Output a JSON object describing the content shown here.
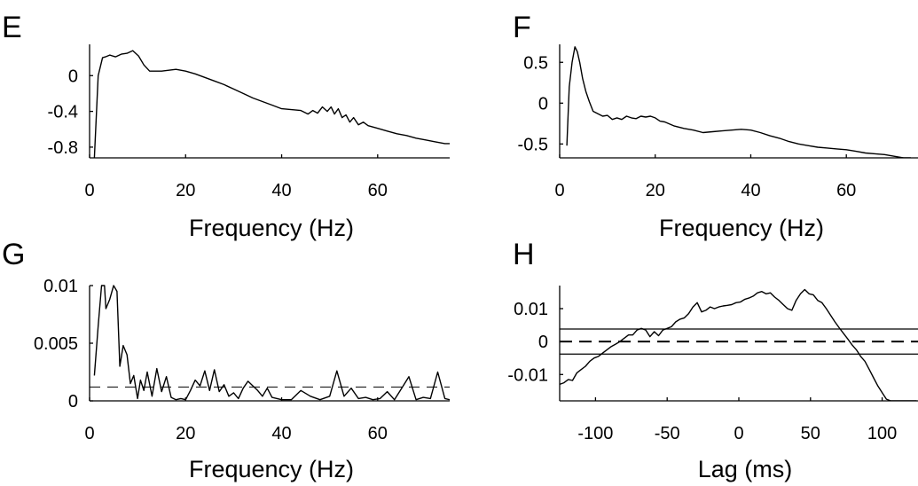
{
  "chart_data": [
    {
      "panel": "E",
      "type": "line",
      "xlabel": "Frequency (Hz)",
      "ylabel": "",
      "xlim": [
        0,
        75
      ],
      "ylim": [
        -0.92,
        0.35
      ],
      "xticks": [
        "0",
        "20",
        "40",
        "60"
      ],
      "yticks": [
        "0",
        "-0.4",
        "-0.8"
      ],
      "series": [
        {
          "x": [
            1,
            1.8,
            2.7,
            3.3,
            4.2,
            5.4,
            6.6,
            7.8,
            9.0,
            10.2,
            11.3,
            12.5,
            13.7,
            15.0,
            16.5,
            18.0,
            20.0,
            22.0,
            24.0,
            26.0,
            28.0,
            30.0,
            32.0,
            34.0,
            36.0,
            38.0,
            40.0,
            42.0,
            44.0,
            45.5,
            46.5,
            47.5,
            48.5,
            49.5,
            50.3,
            51.0,
            51.8,
            52.6,
            53.4,
            54.2,
            55.0,
            56.0,
            57.0,
            58.0,
            60.0,
            62.0,
            64.0,
            66.0,
            68.0,
            70.0,
            72.0,
            74.0,
            75.0
          ],
          "y": [
            -0.92,
            0.0,
            0.2,
            0.21,
            0.23,
            0.21,
            0.24,
            0.25,
            0.28,
            0.22,
            0.12,
            0.05,
            0.05,
            0.05,
            0.06,
            0.07,
            0.05,
            0.02,
            -0.02,
            -0.06,
            -0.1,
            -0.15,
            -0.2,
            -0.25,
            -0.29,
            -0.33,
            -0.37,
            -0.38,
            -0.39,
            -0.43,
            -0.39,
            -0.42,
            -0.35,
            -0.4,
            -0.35,
            -0.43,
            -0.37,
            -0.47,
            -0.44,
            -0.52,
            -0.47,
            -0.55,
            -0.52,
            -0.56,
            -0.59,
            -0.62,
            -0.65,
            -0.67,
            -0.7,
            -0.72,
            -0.74,
            -0.76,
            -0.76
          ]
        }
      ]
    },
    {
      "panel": "F",
      "type": "line",
      "xlabel": "Frequency (Hz)",
      "ylabel": "",
      "xlim": [
        0,
        75
      ],
      "ylim": [
        -0.67,
        0.72
      ],
      "xticks": [
        "0",
        "20",
        "40",
        "60"
      ],
      "yticks": [
        "0.5",
        "0",
        "-0.5"
      ],
      "series": [
        {
          "x": [
            1.5,
            2.0,
            2.6,
            3.2,
            3.7,
            4.2,
            4.8,
            5.5,
            6.2,
            7.0,
            8.0,
            9.0,
            10.0,
            11.0,
            12.0,
            13.0,
            14.0,
            15.0,
            16.0,
            17.0,
            18.0,
            19.0,
            20.0,
            21.0,
            22.0,
            24.0,
            26.0,
            28.0,
            30.0,
            32.0,
            34.0,
            36.0,
            38.0,
            40.0,
            42.0,
            44.0,
            46.0,
            48.0,
            50.0,
            52.0,
            54.0,
            56.0,
            58.0,
            60.0,
            62.0,
            64.0,
            66.0,
            68.0,
            70.0,
            72.0,
            73.5
          ],
          "y": [
            -0.52,
            0.2,
            0.5,
            0.69,
            0.63,
            0.5,
            0.3,
            0.14,
            0.02,
            -0.1,
            -0.13,
            -0.16,
            -0.15,
            -0.2,
            -0.18,
            -0.2,
            -0.16,
            -0.18,
            -0.19,
            -0.16,
            -0.17,
            -0.16,
            -0.18,
            -0.22,
            -0.23,
            -0.28,
            -0.31,
            -0.33,
            -0.36,
            -0.35,
            -0.34,
            -0.33,
            -0.32,
            -0.33,
            -0.36,
            -0.4,
            -0.43,
            -0.47,
            -0.5,
            -0.52,
            -0.54,
            -0.55,
            -0.56,
            -0.57,
            -0.59,
            -0.61,
            -0.62,
            -0.63,
            -0.65,
            -0.67,
            -0.67
          ]
        }
      ]
    },
    {
      "panel": "G",
      "type": "line",
      "xlabel": "Frequency (Hz)",
      "ylabel": "",
      "xlim": [
        0,
        75
      ],
      "ylim": [
        0,
        0.01
      ],
      "xticks": [
        "0",
        "20",
        "40",
        "60"
      ],
      "yticks": [
        "0.01",
        "0.005",
        "0"
      ],
      "series": [
        {
          "x": [
            1,
            1.8,
            2.5,
            3.1,
            3.4,
            4.2,
            5.0,
            5.7,
            6.3,
            7.0,
            7.8,
            8.5,
            9.2,
            10.0,
            10.6,
            11.3,
            12.0,
            13.0,
            14.0,
            15.0,
            16.0,
            17.0,
            18.0,
            19.0,
            20.0,
            21.0,
            22.0,
            23.0,
            24.0,
            25.0,
            26.0,
            27.0,
            28.0,
            29.0,
            30.0,
            31.0,
            32.0,
            33.0,
            34.0,
            35.0,
            36.0,
            37.0,
            38.0,
            40.0,
            42.0,
            44.0,
            46.0,
            48.0,
            50.0,
            51.5,
            53.0,
            54.5,
            56.0,
            57.5,
            59.0,
            60.5,
            62.0,
            63.5,
            65.0,
            66.5,
            68.0,
            69.5,
            71.0,
            72.5,
            74.0,
            75.0
          ],
          "y": [
            0.0022,
            0.0065,
            0.01,
            0.01,
            0.008,
            0.0088,
            0.01,
            0.0095,
            0.003,
            0.0048,
            0.004,
            0.0015,
            0.0022,
            0.0002,
            0.0018,
            0.0009,
            0.0025,
            0.0004,
            0.0028,
            0.0008,
            0.0021,
            0.0003,
            0.0001,
            0.0002,
            0.0001,
            0.0009,
            0.0018,
            0.0013,
            0.0026,
            0.0009,
            0.0027,
            0.0008,
            0.0014,
            0.0004,
            0.0007,
            0.0002,
            0.0011,
            0.0017,
            0.0013,
            0.0009,
            0.0004,
            0.0011,
            0.0003,
            0.0001,
            0.0001,
            0.0009,
            0.0004,
            0.0001,
            0.0004,
            0.0026,
            0.0004,
            0.0011,
            0.0002,
            0.0003,
            0.0001,
            0.0002,
            0.0008,
            0.0001,
            0.0011,
            0.0021,
            0.0001,
            0.0003,
            0.0002,
            0.0025,
            0.0002,
            0.0001
          ]
        }
      ],
      "reference_lines": [
        {
          "y": 0.0012,
          "style": "dashed"
        }
      ]
    },
    {
      "panel": "H",
      "type": "line",
      "xlabel": "Lag (ms)",
      "ylabel": "",
      "xlim": [
        -125,
        125
      ],
      "ylim": [
        -0.018,
        0.017
      ],
      "xticks": [
        "-100",
        "-50",
        "0",
        "50",
        "100"
      ],
      "yticks": [
        "0.01",
        "0",
        "-0.01"
      ],
      "series": [
        {
          "x": [
            -125,
            -122,
            -119,
            -116,
            -113,
            -110,
            -107,
            -104,
            -101,
            -98,
            -95,
            -92,
            -89,
            -86,
            -83,
            -80,
            -77,
            -74,
            -71,
            -68,
            -65,
            -62,
            -59,
            -56,
            -53,
            -50,
            -47,
            -44,
            -41,
            -38,
            -35,
            -32,
            -29,
            -26,
            -23,
            -20,
            -17,
            -14,
            -11,
            -8,
            -5,
            -2,
            1,
            4,
            7,
            10,
            13,
            16,
            19,
            22,
            25,
            28,
            31,
            34,
            37,
            40,
            43,
            46,
            49,
            52,
            55,
            58,
            61,
            64,
            67,
            70,
            73,
            76,
            79,
            82,
            85,
            88,
            91,
            94,
            97,
            100,
            103,
            106,
            109,
            112,
            115,
            118,
            121,
            124
          ],
          "y": [
            -0.013,
            -0.0125,
            -0.0115,
            -0.0118,
            -0.0095,
            -0.0085,
            -0.0075,
            -0.006,
            -0.005,
            -0.0045,
            -0.0035,
            -0.0025,
            -0.0015,
            -0.0008,
            0.0,
            0.001,
            0.002,
            0.002,
            0.0035,
            0.004,
            0.0035,
            0.0015,
            0.003,
            0.0018,
            0.0035,
            0.004,
            0.0045,
            0.006,
            0.0068,
            0.0072,
            0.0085,
            0.0105,
            0.0118,
            0.009,
            0.0095,
            0.0105,
            0.01,
            0.0105,
            0.0108,
            0.011,
            0.0112,
            0.0118,
            0.012,
            0.0128,
            0.0132,
            0.0138,
            0.0148,
            0.0152,
            0.0145,
            0.0148,
            0.0135,
            0.0125,
            0.0112,
            0.01,
            0.0095,
            0.0125,
            0.0145,
            0.0158,
            0.0145,
            0.0142,
            0.0125,
            0.0118,
            0.01,
            0.008,
            0.006,
            0.0042,
            0.0025,
            0.0008,
            -0.001,
            -0.0025,
            -0.0045,
            -0.006,
            -0.0085,
            -0.011,
            -0.0135,
            -0.0155,
            -0.0175,
            -0.018,
            -0.018,
            -0.018,
            -0.018,
            -0.018,
            -0.018,
            -0.018
          ]
        }
      ],
      "reference_lines": [
        {
          "y": 0.0038,
          "style": "solid"
        },
        {
          "y": 0.0,
          "style": "dashed"
        },
        {
          "y": -0.0038,
          "style": "solid"
        }
      ]
    }
  ],
  "panels": {
    "E": {
      "letter": "E",
      "xlabel": "Frequency (Hz)"
    },
    "F": {
      "letter": "F",
      "xlabel": "Frequency (Hz)"
    },
    "G": {
      "letter": "G",
      "xlabel": "Frequency (Hz)"
    },
    "H": {
      "letter": "H",
      "xlabel": "Lag (ms)"
    }
  }
}
